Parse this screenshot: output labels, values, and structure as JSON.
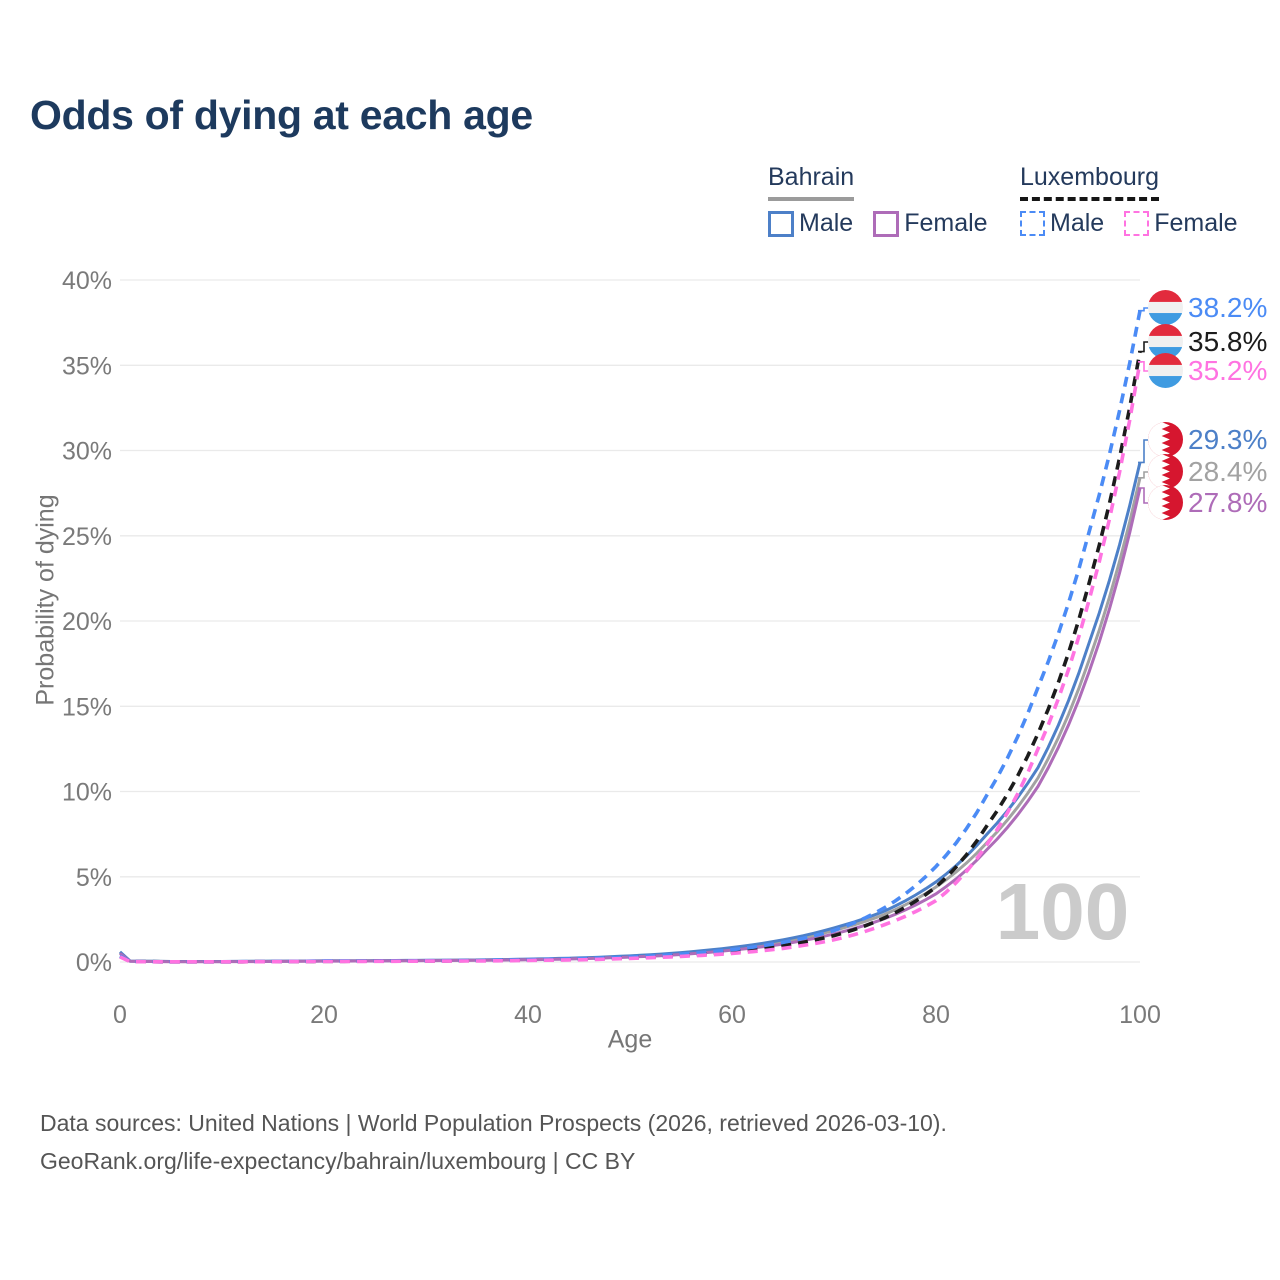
{
  "header": {
    "title": "Odds of dying at each age"
  },
  "legend": {
    "bahrain": {
      "label": "Bahrain",
      "underline_color": "#9b9b9b",
      "male_label": "Male",
      "male_color": "#4d80c8",
      "female_label": "Female",
      "female_color": "#ae6cb8"
    },
    "luxembourg": {
      "label": "Luxembourg",
      "underline_color": "#161616",
      "male_label": "Male",
      "male_color": "#4b8bf5",
      "female_label": "Female",
      "female_color": "#ff73e1"
    }
  },
  "footer": {
    "line1": "Data sources: United Nations | World Population Prospects (2026, retrieved 2026-03-10).",
    "line2": "GeoRank.org/life-expectancy/bahrain/luxembourg | CC BY"
  },
  "chart_data": {
    "type": "line",
    "title": "Odds of dying at each age",
    "xlabel": "Age",
    "ylabel": "Probability of dying",
    "xlim": [
      0,
      100
    ],
    "ylim": [
      0,
      40
    ],
    "x_ticks": [
      0,
      20,
      40,
      60,
      80,
      100
    ],
    "y_tick_values": [
      0,
      5,
      10,
      15,
      20,
      25,
      30,
      35,
      40
    ],
    "y_tick_labels": [
      "0%",
      "5%",
      "10%",
      "15%",
      "20%",
      "25%",
      "30%",
      "35%",
      "40%"
    ],
    "grid": "horizontal",
    "legend_position": "top-right",
    "watermark": "100",
    "ages": [
      0,
      1,
      5,
      10,
      15,
      20,
      25,
      30,
      35,
      40,
      45,
      50,
      55,
      60,
      65,
      70,
      75,
      80,
      85,
      90,
      95,
      100
    ],
    "series": [
      {
        "id": "luxembourg-male",
        "name": "Luxembourg Male",
        "country": "luxembourg",
        "sex": "male",
        "color": "#4b8bf5",
        "dash": "dashed",
        "end_label": "38.2%",
        "values": [
          0.35,
          0.03,
          0.01,
          0.01,
          0.03,
          0.05,
          0.06,
          0.07,
          0.09,
          0.13,
          0.19,
          0.29,
          0.46,
          0.72,
          1.15,
          1.85,
          3.2,
          5.6,
          9.8,
          16.1,
          25.2,
          38.2
        ]
      },
      {
        "id": "luxembourg-both",
        "name": "Luxembourg Both sexes",
        "country": "luxembourg",
        "sex": "both",
        "color": "#1c1c1c",
        "dash": "dashed",
        "end_label": "35.8%",
        "values": [
          0.32,
          0.03,
          0.01,
          0.01,
          0.02,
          0.04,
          0.05,
          0.06,
          0.08,
          0.11,
          0.16,
          0.25,
          0.39,
          0.6,
          0.95,
          1.55,
          2.6,
          4.4,
          8.0,
          13.4,
          22.2,
          35.8
        ]
      },
      {
        "id": "luxembourg-female",
        "name": "Luxembourg Female",
        "country": "luxembourg",
        "sex": "female",
        "color": "#ff73e1",
        "dash": "dashed",
        "end_label": "35.2%",
        "values": [
          0.3,
          0.02,
          0.01,
          0.01,
          0.02,
          0.03,
          0.04,
          0.05,
          0.06,
          0.09,
          0.13,
          0.21,
          0.33,
          0.5,
          0.8,
          1.3,
          2.2,
          3.6,
          6.9,
          12.5,
          21.2,
          35.2
        ]
      },
      {
        "id": "bahrain-male",
        "name": "Bahrain Male",
        "country": "bahrain",
        "sex": "male",
        "color": "#4d80c8",
        "dash": "solid",
        "end_label": "29.3%",
        "values": [
          0.6,
          0.05,
          0.03,
          0.03,
          0.05,
          0.07,
          0.08,
          0.1,
          0.12,
          0.17,
          0.24,
          0.36,
          0.55,
          0.85,
          1.3,
          2.0,
          3.0,
          4.7,
          7.5,
          11.4,
          18.7,
          29.3
        ]
      },
      {
        "id": "bahrain-both",
        "name": "Bahrain Both sexes",
        "country": "bahrain",
        "sex": "both",
        "color": "#a2a2a2",
        "dash": "solid",
        "end_label": "28.4%",
        "values": [
          0.55,
          0.05,
          0.03,
          0.03,
          0.04,
          0.06,
          0.07,
          0.09,
          0.11,
          0.15,
          0.22,
          0.33,
          0.5,
          0.78,
          1.2,
          1.85,
          2.8,
          4.4,
          7.0,
          10.8,
          17.7,
          28.4
        ]
      },
      {
        "id": "bahrain-female",
        "name": "Bahrain Female",
        "country": "bahrain",
        "sex": "female",
        "color": "#ae6cb8",
        "dash": "solid",
        "end_label": "27.8%",
        "values": [
          0.5,
          0.04,
          0.02,
          0.02,
          0.03,
          0.05,
          0.06,
          0.08,
          0.1,
          0.13,
          0.19,
          0.29,
          0.44,
          0.7,
          1.05,
          1.65,
          2.55,
          4.0,
          6.6,
          10.3,
          17.0,
          27.8
        ]
      }
    ],
    "flag_colors": {
      "bahrain_red": "#d6162f",
      "bahrain_white": "#ffffff",
      "luxembourg_red": "#e22b3d",
      "luxembourg_white": "#f0f0f0",
      "luxembourg_blue": "#3f9be1"
    }
  }
}
